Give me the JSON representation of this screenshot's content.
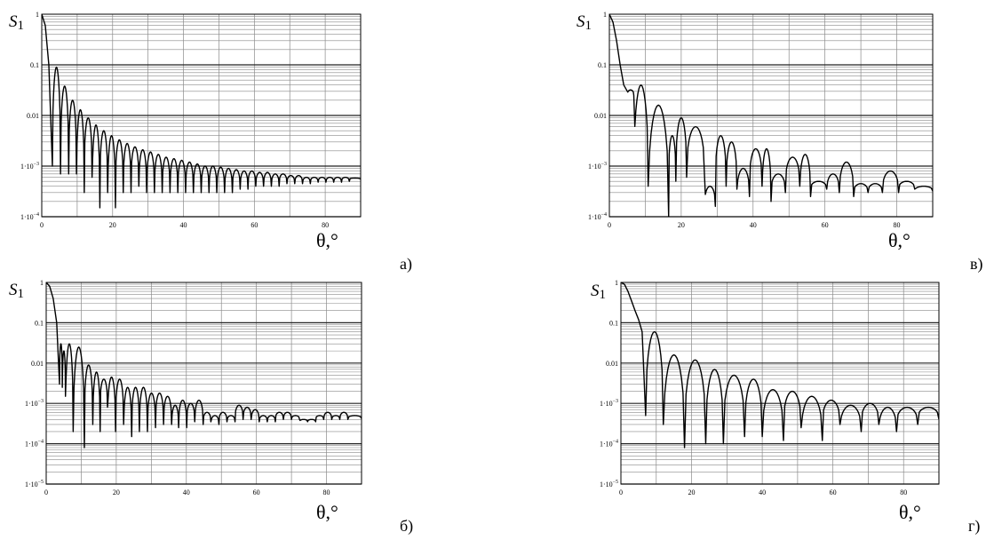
{
  "chart_data": [
    {
      "id": "a",
      "type": "line",
      "panel_label": "а)",
      "ylabel": "S",
      "ylabel_sub": "1",
      "xlabel": "θ,°",
      "xlim": [
        0,
        90
      ],
      "ylim": [
        0.0001,
        1
      ],
      "yscale": "log",
      "grid": true,
      "x_ticks": [
        "0",
        "20",
        "40",
        "60",
        "80"
      ],
      "y_ticks": [
        {
          "value": 1,
          "label": "1"
        },
        {
          "value": 0.1,
          "label": "0.1"
        },
        {
          "value": 0.01,
          "label": "0.01"
        },
        {
          "value": 0.001,
          "label": "1·10",
          "exp": "−3"
        },
        {
          "value": 0.0001,
          "label": "1·10",
          "exp": "−4"
        }
      ],
      "main_lobe": {
        "x": [
          0,
          1,
          2,
          3
        ],
        "y": [
          1,
          0.6,
          0.1,
          0.001
        ]
      },
      "lobes": [
        {
          "start": 3,
          "end": 5.3,
          "peak": 0.09,
          "null": 0.0007
        },
        {
          "start": 5.3,
          "end": 7.6,
          "peak": 0.038,
          "null": 0.0007
        },
        {
          "start": 7.6,
          "end": 9.8,
          "peak": 0.02,
          "null": 0.0007
        },
        {
          "start": 9.8,
          "end": 12,
          "peak": 0.013,
          "null": 0.0003
        },
        {
          "start": 12,
          "end": 14.2,
          "peak": 0.009,
          "null": 0.0006
        },
        {
          "start": 14.2,
          "end": 16.4,
          "peak": 0.0065,
          "null": 0.00015
        },
        {
          "start": 16.4,
          "end": 18.6,
          "peak": 0.005,
          "null": 0.0003
        },
        {
          "start": 18.6,
          "end": 20.8,
          "peak": 0.004,
          "null": 0.00015
        },
        {
          "start": 20.8,
          "end": 23,
          "peak": 0.0033,
          "null": 0.0003
        },
        {
          "start": 23,
          "end": 25.2,
          "peak": 0.0028,
          "null": 0.0003
        },
        {
          "start": 25.2,
          "end": 27.4,
          "peak": 0.0024,
          "null": 0.0004
        },
        {
          "start": 27.4,
          "end": 29.6,
          "peak": 0.0021,
          "null": 0.0003
        },
        {
          "start": 29.6,
          "end": 31.8,
          "peak": 0.0019,
          "null": 0.0003
        },
        {
          "start": 31.8,
          "end": 34,
          "peak": 0.0017,
          "null": 0.0003
        },
        {
          "start": 34,
          "end": 36.2,
          "peak": 0.0015,
          "null": 0.0003
        },
        {
          "start": 36.2,
          "end": 38.4,
          "peak": 0.0014,
          "null": 0.0003
        },
        {
          "start": 38.4,
          "end": 40.6,
          "peak": 0.0013,
          "null": 0.0003
        },
        {
          "start": 40.6,
          "end": 42.8,
          "peak": 0.0012,
          "null": 0.0003
        },
        {
          "start": 42.8,
          "end": 45,
          "peak": 0.0011,
          "null": 0.0003
        },
        {
          "start": 45,
          "end": 47.2,
          "peak": 0.001,
          "null": 0.0003
        },
        {
          "start": 47.2,
          "end": 49.4,
          "peak": 0.001,
          "null": 0.0003
        },
        {
          "start": 49.4,
          "end": 51.6,
          "peak": 0.00095,
          "null": 0.0003
        },
        {
          "start": 51.6,
          "end": 53.8,
          "peak": 0.0009,
          "null": 0.0003
        },
        {
          "start": 53.8,
          "end": 56,
          "peak": 0.00085,
          "null": 0.00035
        },
        {
          "start": 56,
          "end": 58.2,
          "peak": 0.0008,
          "null": 0.00035
        },
        {
          "start": 58.2,
          "end": 60.4,
          "peak": 0.0008,
          "null": 0.0004
        },
        {
          "start": 60.4,
          "end": 62.6,
          "peak": 0.00075,
          "null": 0.0004
        },
        {
          "start": 62.6,
          "end": 64.8,
          "peak": 0.00075,
          "null": 0.0004
        },
        {
          "start": 64.8,
          "end": 67,
          "peak": 0.0007,
          "null": 0.0004
        },
        {
          "start": 67,
          "end": 69.2,
          "peak": 0.0007,
          "null": 0.00045
        },
        {
          "start": 69.2,
          "end": 71.4,
          "peak": 0.00065,
          "null": 0.00045
        },
        {
          "start": 71.4,
          "end": 73.6,
          "peak": 0.00065,
          "null": 0.00045
        },
        {
          "start": 73.6,
          "end": 75.8,
          "peak": 0.0006,
          "null": 0.00045
        },
        {
          "start": 75.8,
          "end": 78,
          "peak": 0.0006,
          "null": 0.00048
        },
        {
          "start": 78,
          "end": 80.2,
          "peak": 0.0006,
          "null": 0.00048
        },
        {
          "start": 80.2,
          "end": 82.4,
          "peak": 0.0006,
          "null": 0.00048
        },
        {
          "start": 82.4,
          "end": 84.6,
          "peak": 0.0006,
          "null": 0.00048
        },
        {
          "start": 84.6,
          "end": 86.8,
          "peak": 0.0006,
          "null": 0.0005
        },
        {
          "start": 86.8,
          "end": 90,
          "peak": 0.00058,
          "null": 0.00055
        }
      ]
    },
    {
      "id": "v",
      "type": "line",
      "panel_label": "в)",
      "ylabel": "S",
      "ylabel_sub": "1",
      "xlabel": "θ,°",
      "xlim": [
        0,
        90
      ],
      "ylim": [
        0.0001,
        1
      ],
      "yscale": "log",
      "grid": true,
      "x_ticks": [
        "0",
        "20",
        "40",
        "60",
        "80"
      ],
      "y_ticks": [
        {
          "value": 1,
          "label": "1"
        },
        {
          "value": 0.1,
          "label": "0.1"
        },
        {
          "value": 0.01,
          "label": "0.01"
        },
        {
          "value": 0.001,
          "label": "1·10",
          "exp": "−3"
        },
        {
          "value": 0.0001,
          "label": "1·10",
          "exp": "−4"
        }
      ],
      "main_lobe": {
        "x": [
          0,
          1,
          2,
          3,
          4,
          5
        ],
        "y": [
          1,
          0.7,
          0.3,
          0.1,
          0.04,
          0.03
        ]
      },
      "lobes": [
        {
          "start": 5,
          "end": 6.8,
          "peak": 0.032,
          "null": 0.025
        },
        {
          "start": 6.8,
          "end": 10.8,
          "peak": 0.04,
          "null": 0.0004
        },
        {
          "start": 10.8,
          "end": 16.5,
          "peak": 0.016,
          "null": 0.0001
        },
        {
          "start": 16.5,
          "end": 18.5,
          "peak": 0.004,
          "null": 0.0005
        },
        {
          "start": 18.5,
          "end": 21.5,
          "peak": 0.009,
          "null": 0.0006
        },
        {
          "start": 21.5,
          "end": 26.5,
          "peak": 0.006,
          "null": 0.0006
        },
        {
          "start": 26.5,
          "end": 29.5,
          "peak": 0.0004,
          "null": 0.00016
        },
        {
          "start": 29.5,
          "end": 32.5,
          "peak": 0.004,
          "null": 0.0004
        },
        {
          "start": 32.5,
          "end": 35.5,
          "peak": 0.003,
          "null": 0.00035
        },
        {
          "start": 35.5,
          "end": 39,
          "peak": 0.0009,
          "null": 0.00025
        },
        {
          "start": 39,
          "end": 42.5,
          "peak": 0.0022,
          "null": 0.0004
        },
        {
          "start": 42.5,
          "end": 45,
          "peak": 0.0022,
          "null": 0.0002
        },
        {
          "start": 45,
          "end": 49,
          "peak": 0.0007,
          "null": 0.0003
        },
        {
          "start": 49,
          "end": 53,
          "peak": 0.0015,
          "null": 0.0004
        },
        {
          "start": 53,
          "end": 56,
          "peak": 0.0017,
          "null": 0.00025
        },
        {
          "start": 56,
          "end": 60.5,
          "peak": 0.0005,
          "null": 0.00035
        },
        {
          "start": 60.5,
          "end": 64,
          "peak": 0.0007,
          "null": 0.0003
        },
        {
          "start": 64,
          "end": 68,
          "peak": 0.0012,
          "null": 0.00025
        },
        {
          "start": 68,
          "end": 72,
          "peak": 0.00045,
          "null": 0.0003
        },
        {
          "start": 72,
          "end": 76,
          "peak": 0.00045,
          "null": 0.0003
        },
        {
          "start": 76,
          "end": 80.5,
          "peak": 0.0008,
          "null": 0.0003
        },
        {
          "start": 80.5,
          "end": 85,
          "peak": 0.0005,
          "null": 0.00035
        },
        {
          "start": 85,
          "end": 90,
          "peak": 0.0004,
          "null": 0.00032
        }
      ]
    },
    {
      "id": "b",
      "type": "line",
      "panel_label": "б)",
      "ylabel": "S",
      "ylabel_sub": "1",
      "xlabel": "θ,°",
      "xlim": [
        0,
        90
      ],
      "ylim": [
        1e-05,
        1
      ],
      "yscale": "log",
      "grid": true,
      "x_ticks": [
        "0",
        "20",
        "40",
        "60",
        "80"
      ],
      "y_ticks": [
        {
          "value": 1,
          "label": "1"
        },
        {
          "value": 0.1,
          "label": "0.1"
        },
        {
          "value": 0.01,
          "label": "0.01"
        },
        {
          "value": 0.001,
          "label": "1·10",
          "exp": "−3"
        },
        {
          "value": 0.0001,
          "label": "1·10",
          "exp": "−4"
        },
        {
          "value": 1e-05,
          "label": "1·10",
          "exp": "−5"
        }
      ],
      "main_lobe": {
        "x": [
          0,
          1,
          2,
          3,
          3.8
        ],
        "y": [
          1,
          0.8,
          0.4,
          0.1,
          0.003
        ]
      },
      "lobes": [
        {
          "start": 3.8,
          "end": 4.6,
          "peak": 0.03,
          "null": 0.0025
        },
        {
          "start": 4.6,
          "end": 5.5,
          "peak": 0.02,
          "null": 0.0015
        },
        {
          "start": 5.5,
          "end": 7.7,
          "peak": 0.03,
          "null": 0.0002
        },
        {
          "start": 7.7,
          "end": 10.9,
          "peak": 0.025,
          "null": 8e-05
        },
        {
          "start": 10.9,
          "end": 13.3,
          "peak": 0.009,
          "null": 0.0003
        },
        {
          "start": 13.3,
          "end": 15.4,
          "peak": 0.006,
          "null": 0.0002
        },
        {
          "start": 15.4,
          "end": 17.5,
          "peak": 0.004,
          "null": 0.0008
        },
        {
          "start": 17.5,
          "end": 19.8,
          "peak": 0.0045,
          "null": 0.0002
        },
        {
          "start": 19.8,
          "end": 22.1,
          "peak": 0.004,
          "null": 0.0003
        },
        {
          "start": 22.1,
          "end": 24.4,
          "peak": 0.0025,
          "null": 0.00015
        },
        {
          "start": 24.4,
          "end": 26.6,
          "peak": 0.0025,
          "null": 0.0002
        },
        {
          "start": 26.6,
          "end": 28.9,
          "peak": 0.0025,
          "null": 0.0002
        },
        {
          "start": 28.9,
          "end": 31.2,
          "peak": 0.0018,
          "null": 0.00025
        },
        {
          "start": 31.2,
          "end": 33.5,
          "peak": 0.0018,
          "null": 0.0003
        },
        {
          "start": 33.5,
          "end": 35.8,
          "peak": 0.0015,
          "null": 0.0003
        },
        {
          "start": 35.8,
          "end": 37.8,
          "peak": 0.0009,
          "null": 0.00025
        },
        {
          "start": 37.8,
          "end": 40.1,
          "peak": 0.0012,
          "null": 0.00025
        },
        {
          "start": 40.1,
          "end": 42.4,
          "peak": 0.001,
          "null": 0.00035
        },
        {
          "start": 42.4,
          "end": 44.8,
          "peak": 0.0012,
          "null": 0.0003
        },
        {
          "start": 44.8,
          "end": 47,
          "peak": 0.0006,
          "null": 0.00035
        },
        {
          "start": 47,
          "end": 49.3,
          "peak": 0.0005,
          "null": 0.0003
        },
        {
          "start": 49.3,
          "end": 51.6,
          "peak": 0.0006,
          "null": 0.00035
        },
        {
          "start": 51.6,
          "end": 53.9,
          "peak": 0.0005,
          "null": 0.00035
        },
        {
          "start": 53.9,
          "end": 56.2,
          "peak": 0.0009,
          "null": 0.0004
        },
        {
          "start": 56.2,
          "end": 58.5,
          "peak": 0.0008,
          "null": 0.0004
        },
        {
          "start": 58.5,
          "end": 60.8,
          "peak": 0.0007,
          "null": 0.00035
        },
        {
          "start": 60.8,
          "end": 63.1,
          "peak": 0.0005,
          "null": 0.00035
        },
        {
          "start": 63.1,
          "end": 65.4,
          "peak": 0.0005,
          "null": 0.00035
        },
        {
          "start": 65.4,
          "end": 67.7,
          "peak": 0.0006,
          "null": 0.0004
        },
        {
          "start": 67.7,
          "end": 70,
          "peak": 0.0006,
          "null": 0.0004
        },
        {
          "start": 70,
          "end": 72.3,
          "peak": 0.0005,
          "null": 0.0004
        },
        {
          "start": 72.3,
          "end": 74.6,
          "peak": 0.0004,
          "null": 0.00035
        },
        {
          "start": 74.6,
          "end": 76.9,
          "peak": 0.0004,
          "null": 0.00035
        },
        {
          "start": 76.9,
          "end": 79.2,
          "peak": 0.0005,
          "null": 0.0004
        },
        {
          "start": 79.2,
          "end": 81.5,
          "peak": 0.0006,
          "null": 0.0004
        },
        {
          "start": 81.5,
          "end": 83.8,
          "peak": 0.0005,
          "null": 0.0004
        },
        {
          "start": 83.8,
          "end": 86.1,
          "peak": 0.0006,
          "null": 0.0004
        },
        {
          "start": 86.1,
          "end": 90,
          "peak": 0.0005,
          "null": 0.00042
        }
      ]
    },
    {
      "id": "g",
      "type": "line",
      "panel_label": "г)",
      "ylabel": "S",
      "ylabel_sub": "1",
      "xlabel": "θ,°",
      "xlim": [
        0,
        90
      ],
      "ylim": [
        1e-05,
        1
      ],
      "yscale": "log",
      "grid": true,
      "x_ticks": [
        "0",
        "20",
        "40",
        "60",
        "80"
      ],
      "y_ticks": [
        {
          "value": 1,
          "label": "1"
        },
        {
          "value": 0.1,
          "label": "0.1"
        },
        {
          "value": 0.01,
          "label": "0.01"
        },
        {
          "value": 0.001,
          "label": "1·10",
          "exp": "−3"
        },
        {
          "value": 0.0001,
          "label": "1·10",
          "exp": "−4"
        },
        {
          "value": 1e-05,
          "label": "1·10",
          "exp": "−5"
        }
      ],
      "main_lobe": {
        "x": [
          0,
          1,
          2,
          3,
          4,
          5,
          6,
          7
        ],
        "y": [
          1,
          0.9,
          0.6,
          0.35,
          0.2,
          0.12,
          0.06,
          0.0005
        ]
      },
      "lobes": [
        {
          "start": 7,
          "end": 12,
          "peak": 0.06,
          "null": 0.0003
        },
        {
          "start": 12,
          "end": 18,
          "peak": 0.016,
          "null": 8e-05
        },
        {
          "start": 18,
          "end": 24,
          "peak": 0.012,
          "null": 0.0001
        },
        {
          "start": 24,
          "end": 29,
          "peak": 0.007,
          "null": 0.0001
        },
        {
          "start": 29,
          "end": 35,
          "peak": 0.005,
          "null": 0.00015
        },
        {
          "start": 35,
          "end": 40,
          "peak": 0.004,
          "null": 0.00015
        },
        {
          "start": 40,
          "end": 46,
          "peak": 0.0022,
          "null": 0.00012
        },
        {
          "start": 46,
          "end": 51,
          "peak": 0.002,
          "null": 0.00025
        },
        {
          "start": 51,
          "end": 57,
          "peak": 0.0015,
          "null": 0.00012
        },
        {
          "start": 57,
          "end": 62,
          "peak": 0.0012,
          "null": 0.0003
        },
        {
          "start": 62,
          "end": 68,
          "peak": 0.0009,
          "null": 0.0002
        },
        {
          "start": 68,
          "end": 73,
          "peak": 0.001,
          "null": 0.0003
        },
        {
          "start": 73,
          "end": 78,
          "peak": 0.0008,
          "null": 0.0002
        },
        {
          "start": 78,
          "end": 84,
          "peak": 0.0008,
          "null": 0.0003
        },
        {
          "start": 84,
          "end": 90,
          "peak": 0.0008,
          "null": 0.0004
        }
      ]
    }
  ]
}
